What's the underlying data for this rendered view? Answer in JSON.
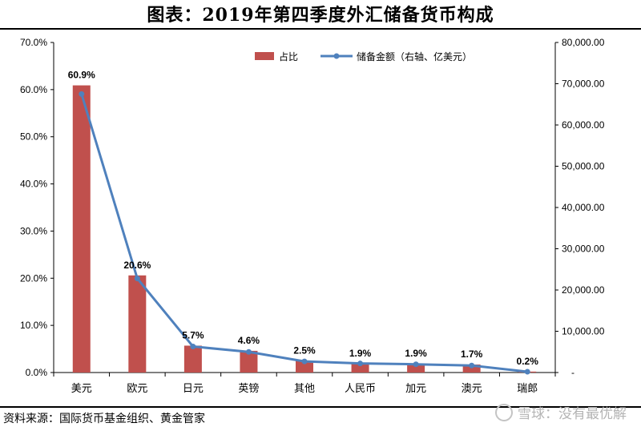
{
  "title": "图表：2019年第四季度外汇储备货币构成",
  "source": "资料来源：国际货币基金组织、黄金管家",
  "watermark": "雪球：没有最优解",
  "chart_data": {
    "type": "bar",
    "categories": [
      "美元",
      "欧元",
      "日元",
      "英镑",
      "其他",
      "人民币",
      "加元",
      "澳元",
      "瑞郎"
    ],
    "series": [
      {
        "name": "占比",
        "type": "bar",
        "axis": "left",
        "values": [
          60.9,
          20.6,
          5.7,
          4.6,
          2.5,
          1.9,
          1.9,
          1.7,
          0.2
        ],
        "labels": [
          "60.9%",
          "20.6%",
          "5.7%",
          "4.6%",
          "2.5%",
          "1.9%",
          "1.9%",
          "1.7%",
          "0.2%"
        ],
        "color": "#c0504d"
      },
      {
        "name": "储备金额（右轴、亿美元）",
        "type": "line",
        "axis": "right",
        "values": [
          67500,
          22800,
          6300,
          5000,
          2700,
          2200,
          2000,
          1700,
          200
        ],
        "color": "#4f81bd"
      }
    ],
    "y_left": {
      "ylim": [
        0,
        70
      ],
      "ticks": [
        0,
        10,
        20,
        30,
        40,
        50,
        60,
        70
      ],
      "tick_labels": [
        "0.0%",
        "10.0%",
        "20.0%",
        "30.0%",
        "40.0%",
        "50.0%",
        "60.0%",
        "70.0%"
      ]
    },
    "y_right": {
      "ylim": [
        0,
        80000
      ],
      "ticks": [
        0,
        10000,
        20000,
        30000,
        40000,
        50000,
        60000,
        70000,
        80000
      ],
      "tick_labels": [
        "-",
        "10,000.00",
        "20,000.00",
        "30,000.00",
        "40,000.00",
        "50,000.00",
        "60,000.00",
        "70,000.00",
        "80,000.00"
      ]
    },
    "legend": {
      "placement": "top-right",
      "bar_label": "占比",
      "line_label": "储备金额（右轴、亿美元）"
    },
    "grid": false
  }
}
